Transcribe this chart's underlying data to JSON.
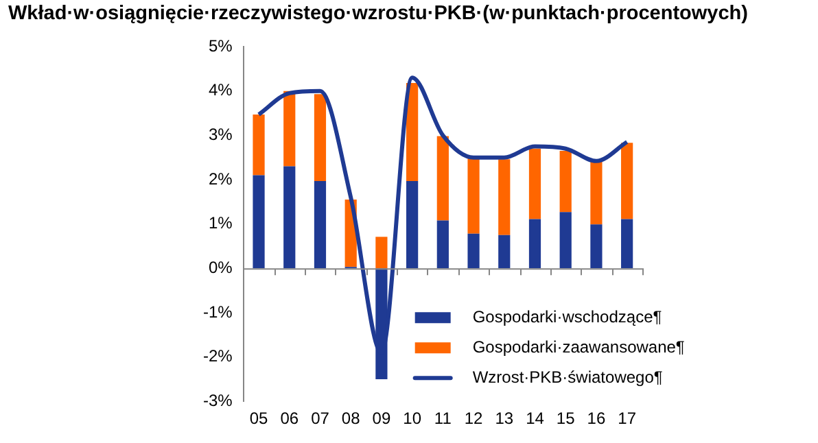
{
  "chart_data": {
    "type": "bar",
    "title": "Wkład·w·osiągnięcie·rzeczywistego·wzrostu·PKB·(w·punktach·procentowych)",
    "categories": [
      "05",
      "06",
      "07",
      "08",
      "09",
      "10",
      "11",
      "12",
      "13",
      "14",
      "15",
      "16",
      "17"
    ],
    "stacked": true,
    "series": [
      {
        "name": "Gospodarki·wschodzące¶",
        "color": "#1f3a93",
        "values": [
          2.1,
          2.3,
          1.97,
          0.03,
          -2.5,
          1.97,
          1.08,
          0.78,
          0.75,
          1.11,
          1.27,
          0.99,
          1.11
        ]
      },
      {
        "name": "Gospodarki·zaawansowane¶",
        "color": "#ff6600",
        "values": [
          1.37,
          1.7,
          1.96,
          1.52,
          0.71,
          2.21,
          1.9,
          1.7,
          1.71,
          1.59,
          1.38,
          1.43,
          1.72
        ]
      },
      {
        "name": "Wzrost·PKB·światowego¶",
        "type": "line",
        "color": "#1f3a93",
        "values": [
          3.47,
          3.95,
          4.0,
          1.6,
          -1.9,
          4.3,
          3.0,
          2.5,
          2.5,
          2.75,
          2.7,
          2.42,
          2.85
        ]
      }
    ],
    "ylim": [
      -3,
      5
    ],
    "yticks": [
      {
        "value": -3,
        "label": "-3%"
      },
      {
        "value": -2,
        "label": "-2%"
      },
      {
        "value": -1,
        "label": "-1%"
      },
      {
        "value": 0,
        "label": "0%"
      },
      {
        "value": 1,
        "label": "1%"
      },
      {
        "value": 2,
        "label": "2%"
      },
      {
        "value": 3,
        "label": "3%"
      },
      {
        "value": 4,
        "label": "4%"
      },
      {
        "value": 5,
        "label": "5%"
      }
    ],
    "legend": "bottom right",
    "marker": "none"
  }
}
